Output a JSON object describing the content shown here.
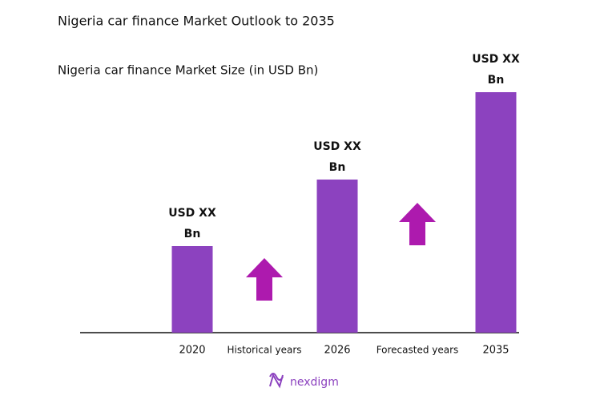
{
  "chart_data": {
    "type": "bar",
    "title": "Nigeria car finance Market Outlook to 2035",
    "subtitle": "Nigeria car finance Market Size (in USD Bn)",
    "categories": [
      "2020",
      "2026",
      "2035"
    ],
    "values": [
      108,
      191,
      300
    ],
    "value_labels": [
      "USD XX Bn",
      "USD XX Bn",
      "USD XX Bn"
    ],
    "color": "#8c42bf",
    "annotations": [
      "Historical years",
      "Forecasted years"
    ],
    "arrow_color": "#ad1aae",
    "logo": "nexdigm"
  }
}
